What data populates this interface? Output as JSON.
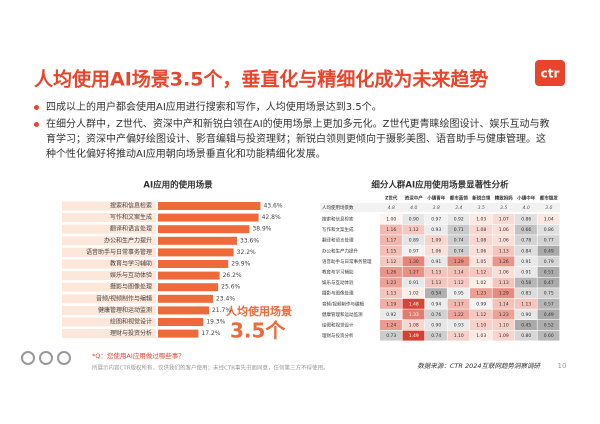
{
  "header": {
    "title": "人均使用AI场景3.5个，垂直化与精细化成为未来趋势",
    "logo": "ctr"
  },
  "bullets": [
    "四成以上的用户都会使用AI应用进行搜索和写作，人均使用场景达到3.5个。",
    "在细分人群中，Z世代、资深中产和新锐白领在AI的使用场景上更加多元化。Z世代更青睐绘图设计、娱乐互动与教育学习；资深中产偏好绘图设计、影音编辑与投资理财；新锐白领则更倾向于摄影美图、语音助手与健康管理。这种个性化偏好将推动AI应用朝向场景垂直化和功能精细化发展。"
  ],
  "chart_data": {
    "type": "bar",
    "title": "AI应用的使用场景",
    "categories": [
      "搜索和信息检索",
      "写作和文案生成",
      "翻译和语言处理",
      "办公和生产力提升",
      "语音助手与日常事务管理",
      "教育与学习辅助",
      "娱乐与互动体验",
      "摄影与图像处理",
      "音频/视频制作与编辑",
      "健康管理和运动监测",
      "绘图和视觉设计",
      "理财与投资分析"
    ],
    "values": [
      43.6,
      42.8,
      38.9,
      33.6,
      32.2,
      29.9,
      26.2,
      25.6,
      23.4,
      21.7,
      19.3,
      17.2
    ],
    "value_labels": [
      "43.6%",
      "42.8%",
      "38.9%",
      "33.6%",
      "32.2%",
      "29.9%",
      "26.2%",
      "25.6%",
      "23.4%",
      "21.7%",
      "19.3%",
      "17.2%"
    ],
    "color": "#ef6a3a",
    "annotation": [
      "人均使用场景",
      "3.5个"
    ],
    "question": "*Q：您使用AI应用做过哪些事？"
  },
  "table": {
    "title": "细分人群AI应用使用场景显著性分析",
    "columns": [
      "Z世代",
      "资深中产",
      "小镇青年",
      "都市蓝领",
      "新锐白领",
      "精致妈妈",
      "小镇中年",
      "都市银发"
    ],
    "average": {
      "label": "人均使用场景数",
      "values": [
        "4.8",
        "4.0",
        "3.8",
        "3.4",
        "3.5",
        "3.5",
        "4.0",
        "3.0"
      ]
    },
    "rows": [
      {
        "label": "搜索和信息检索",
        "values": [
          "1.00",
          "0.90",
          "0.97",
          "0.92",
          "1.03",
          "1.07",
          "0.86",
          "1.04"
        ]
      },
      {
        "label": "写作和文案生成",
        "values": [
          "1.16",
          "1.12",
          "0.93",
          "0.71",
          "1.08",
          "1.06",
          "0.66",
          "0.86"
        ]
      },
      {
        "label": "翻译和语言处理",
        "values": [
          "1.17",
          "0.89",
          "1.09",
          "0.74",
          "1.08",
          "1.06",
          "0.78",
          "0.77"
        ]
      },
      {
        "label": "办公和生产力提升",
        "values": [
          "1.15",
          "0.97",
          "1.06",
          "0.74",
          "1.06",
          "1.13",
          "0.84",
          "0.49"
        ]
      },
      {
        "label": "语音助手与日常事务管理",
        "values": [
          "1.12",
          "1.30",
          "0.91",
          "1.29",
          "1.05",
          "1.26",
          "0.91",
          "0.79"
        ]
      },
      {
        "label": "教育与学习辅助",
        "values": [
          "1.26",
          "1.27",
          "1.13",
          "1.14",
          "1.12",
          "1.06",
          "0.91",
          "0.51"
        ]
      },
      {
        "label": "娱乐与互动体验",
        "values": [
          "1.23",
          "0.91",
          "1.13",
          "1.12",
          "1.02",
          "1.13",
          "0.58",
          "0.47"
        ]
      },
      {
        "label": "摄影与图像处理",
        "values": [
          "1.13",
          "1.02",
          "0.54",
          "0.95",
          "1.23",
          "1.29",
          "0.83",
          "0.75"
        ]
      },
      {
        "label": "音频/视频制作与编辑",
        "values": [
          "1.19",
          "1.48",
          "0.94",
          "1.17",
          "0.99",
          "1.14",
          "1.13",
          "0.57"
        ]
      },
      {
        "label": "健康管理和运动监测",
        "values": [
          "0.92",
          "1.33",
          "0.76",
          "1.22",
          "1.12",
          "1.23",
          "0.90",
          "0.49"
        ]
      },
      {
        "label": "绘图和视觉设计",
        "values": [
          "1.24",
          "1.08",
          "0.90",
          "0.93",
          "1.10",
          "1.10",
          "0.45",
          "0.52"
        ]
      },
      {
        "label": "理财与投资分析",
        "values": [
          "0.73",
          "1.49",
          "0.74",
          "1.10",
          "1.03",
          "1.09",
          "0.80",
          "0.60"
        ]
      }
    ]
  },
  "footer": {
    "note": "所展示内容CTR版权所有，仅供我们的客户使用；未经CTR事先书面同意，任何第三方不得使用。",
    "source": "数据来源：CTR 2024互联网趋势洞察调研",
    "page": 10
  }
}
